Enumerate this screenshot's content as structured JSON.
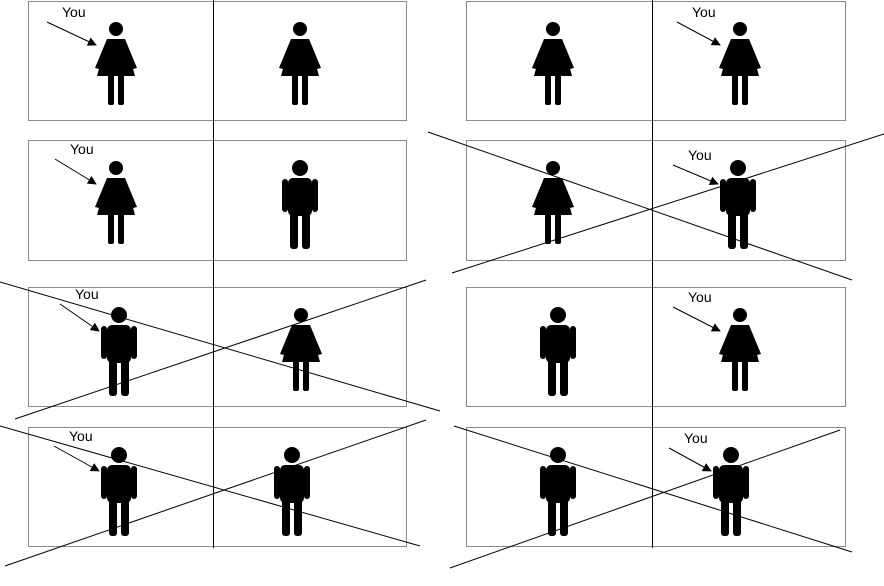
{
  "label_text": "You",
  "colors": {
    "figure": "#000000",
    "box": "#8a8a8a",
    "line": "#000000"
  },
  "panels": [
    {
      "name": "left",
      "rows": [
        {
          "left": "woman",
          "right": "woman",
          "you": "left",
          "crossed": false
        },
        {
          "left": "woman",
          "right": "man",
          "you": "left",
          "crossed": false
        },
        {
          "left": "man",
          "right": "woman",
          "you": "left",
          "crossed": true
        },
        {
          "left": "man",
          "right": "man",
          "you": "left",
          "crossed": true
        }
      ]
    },
    {
      "name": "right",
      "rows": [
        {
          "left": "woman",
          "right": "woman",
          "you": "right",
          "crossed": false
        },
        {
          "left": "woman",
          "right": "man",
          "you": "right",
          "crossed": true
        },
        {
          "left": "man",
          "right": "woman",
          "you": "right",
          "crossed": false
        },
        {
          "left": "man",
          "right": "man",
          "you": "right",
          "crossed": true
        }
      ]
    }
  ]
}
